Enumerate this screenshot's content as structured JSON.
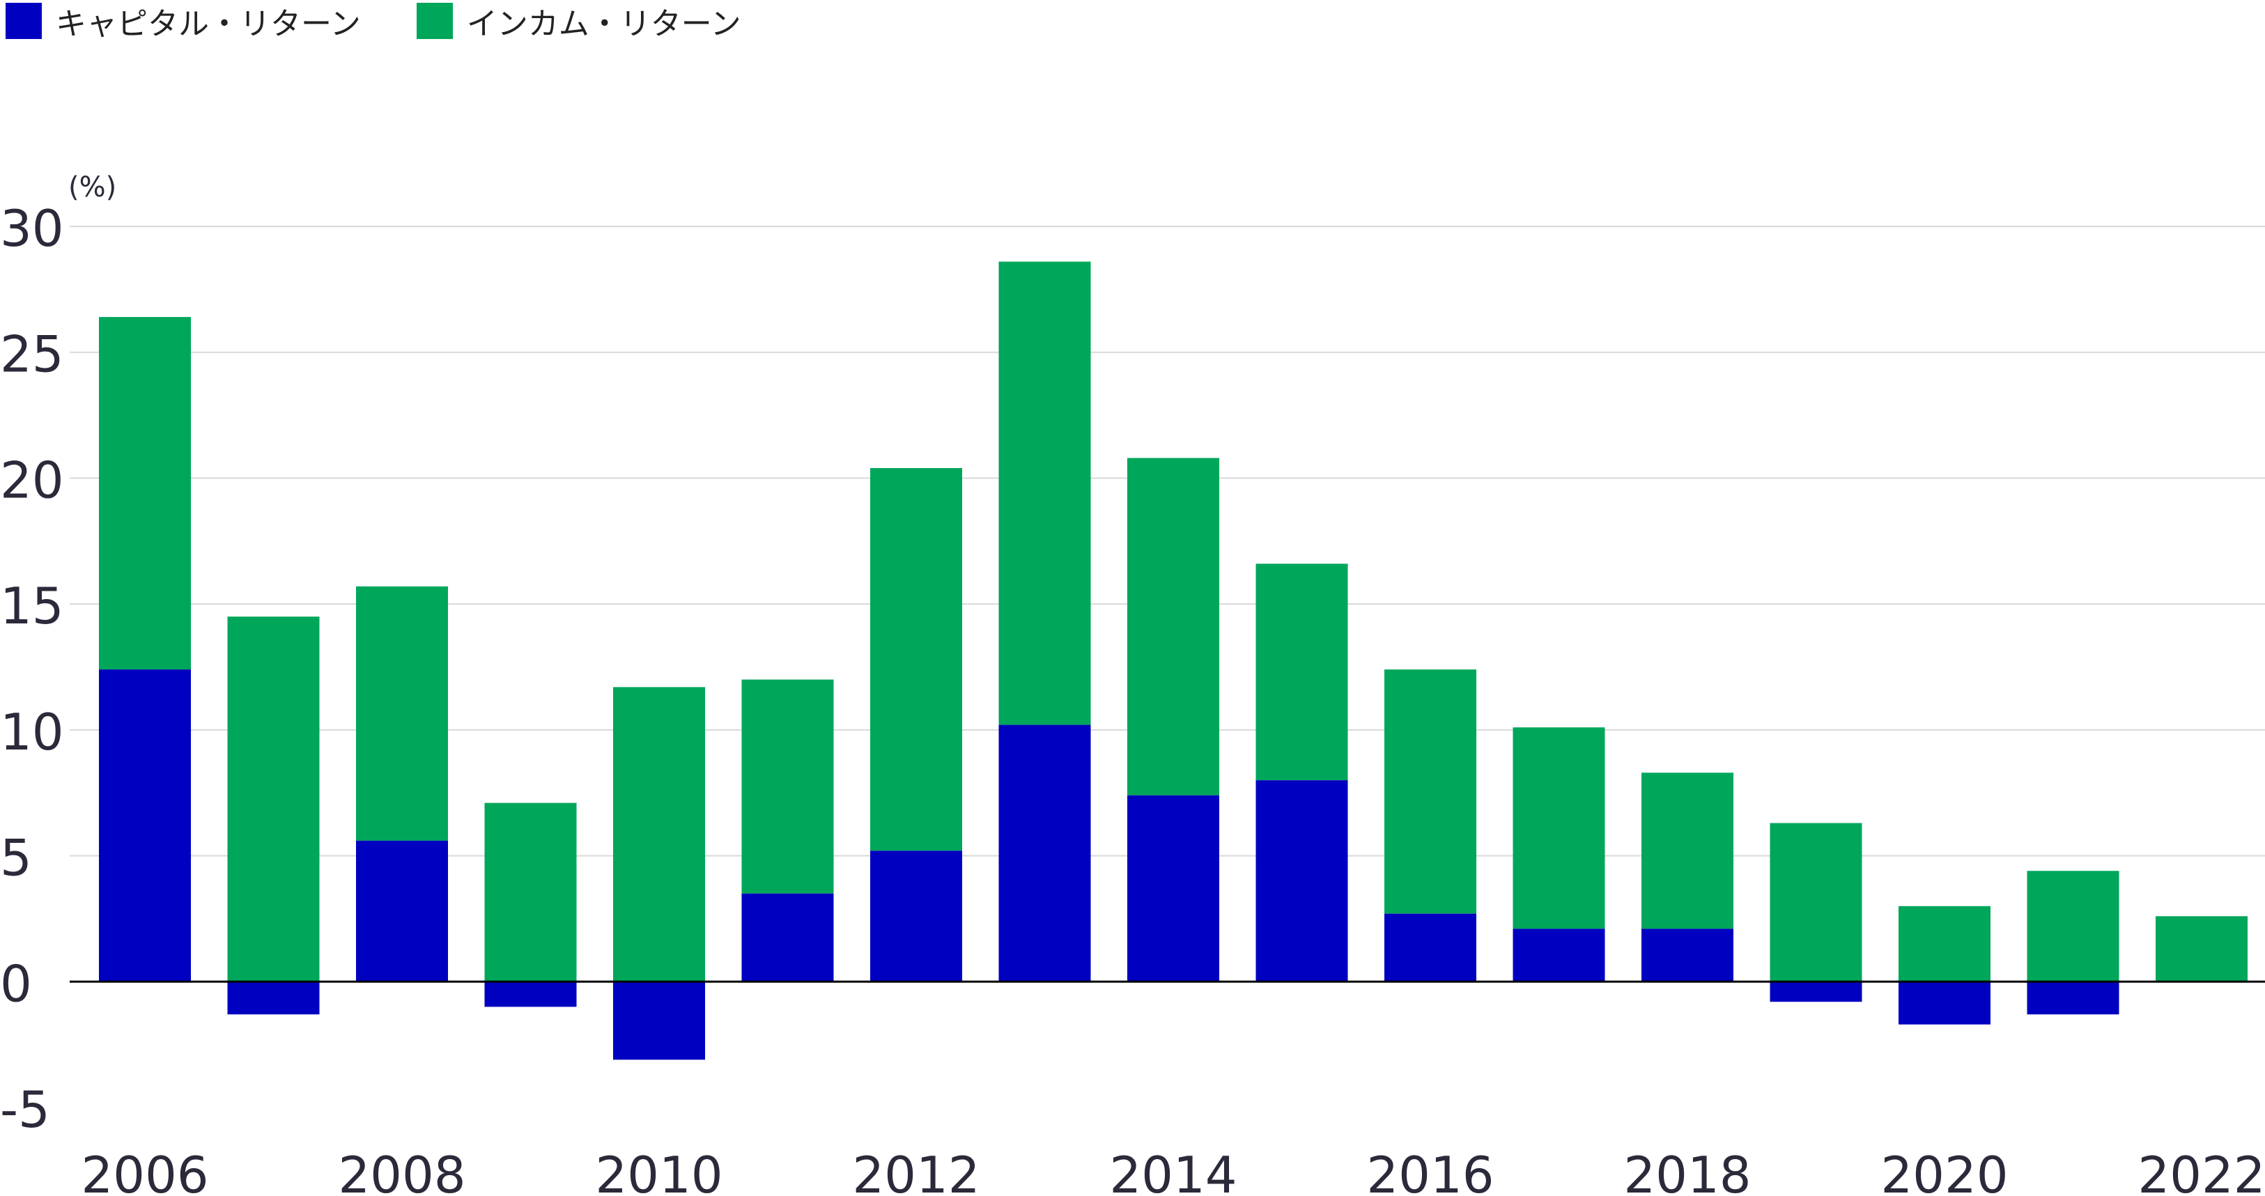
{
  "colors": {
    "capital": "#0000c0",
    "income": "#00a65a",
    "grid": "#d9d9d9",
    "zero_line": "#000000",
    "text": "#2a2a3a"
  },
  "legend": {
    "capital_label": "キャピタル・リターン",
    "income_label": "インカム・リターン"
  },
  "chart_data": {
    "type": "bar",
    "stacked": true,
    "unit_label": "(%)",
    "categories": [
      "2006",
      "2007",
      "2008",
      "2009",
      "2010",
      "2011",
      "2012",
      "2013",
      "2014",
      "2015",
      "2016",
      "2017",
      "2018",
      "2019",
      "2020",
      "2021",
      "2022"
    ],
    "x_tick_labels": [
      "2006",
      "",
      "2008",
      "",
      "2010",
      "",
      "2012",
      "",
      "2014",
      "",
      "2016",
      "",
      "2018",
      "",
      "2020",
      "",
      "2022"
    ],
    "y_ticks": [
      30,
      25,
      20,
      15,
      10,
      5,
      0,
      -5
    ],
    "ylim": [
      -5,
      30
    ],
    "grid": true,
    "legend_position": "top-left",
    "series": [
      {
        "name": "キャピタル・リターン",
        "values": [
          12.4,
          -1.3,
          5.6,
          -1.0,
          -3.1,
          3.5,
          5.2,
          10.2,
          7.4,
          8.0,
          2.7,
          2.1,
          2.1,
          -0.8,
          -1.7,
          -1.3,
          0.0
        ]
      },
      {
        "name": "インカム・リターン",
        "values": [
          14.0,
          14.5,
          10.1,
          7.1,
          11.7,
          8.5,
          15.2,
          18.4,
          13.4,
          8.6,
          9.7,
          8.0,
          6.2,
          6.3,
          3.0,
          4.4,
          2.6
        ]
      }
    ]
  }
}
